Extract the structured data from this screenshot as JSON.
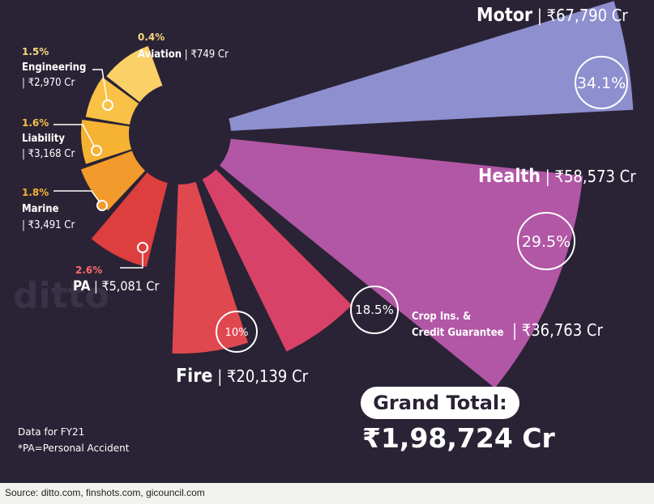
{
  "chart_data": {
    "type": "pie",
    "unit": "Cr",
    "currency": "₹",
    "slices": [
      {
        "name": "Motor",
        "amount": "₹67,790 Cr",
        "value": 67790,
        "pct": "34.1%",
        "color": "#8e8fcf"
      },
      {
        "name": "Health",
        "amount": "₹58,573 Cr",
        "value": 58573,
        "pct": "29.5%",
        "color": "#b256a6"
      },
      {
        "name_line1": "Crop Ins. &",
        "name_line2": "Credit Guarantee",
        "amount": "₹36,763 Cr",
        "value": 36763,
        "pct": "18.5%",
        "color": "#d94268"
      },
      {
        "name": "Fire",
        "amount": "₹20,139 Cr",
        "value": 20139,
        "pct": "10%",
        "color": "#e04850"
      },
      {
        "name": "PA",
        "amount": "₹5,081 Cr",
        "value": 5081,
        "pct": "2.6%",
        "color": "#dd3e3e"
      },
      {
        "name": "Marine",
        "amount": "₹3,491 Cr",
        "value": 3491,
        "pct": "1.8%",
        "color": "#f29a2b"
      },
      {
        "name": "Liability",
        "amount": "₹3,168 Cr",
        "value": 3168,
        "pct": "1.6%",
        "color": "#f6b233"
      },
      {
        "name": "Engineering",
        "amount": "₹2,970 Cr",
        "value": 2970,
        "pct": "1.5%",
        "color": "#f9c247"
      },
      {
        "name": "Aviation",
        "amount": "₹749 Cr",
        "value": 749,
        "pct": "0.4%",
        "color": "#fbd067"
      }
    ],
    "grand_total_label": "Grand Total:",
    "grand_total_value": "₹1,98,724 Cr"
  },
  "notes": {
    "line1": "Data for FY21",
    "line2": "*PA=Personal Accident"
  },
  "watermark": "ditto",
  "source": "Source: ditto.com, finshots.com, gicouncil.com",
  "colors": {
    "background": "#2a2335",
    "pct_orange": "#f6b233",
    "pct_red": "#ff6b6b",
    "pct_yellow": "#f9d77e"
  }
}
